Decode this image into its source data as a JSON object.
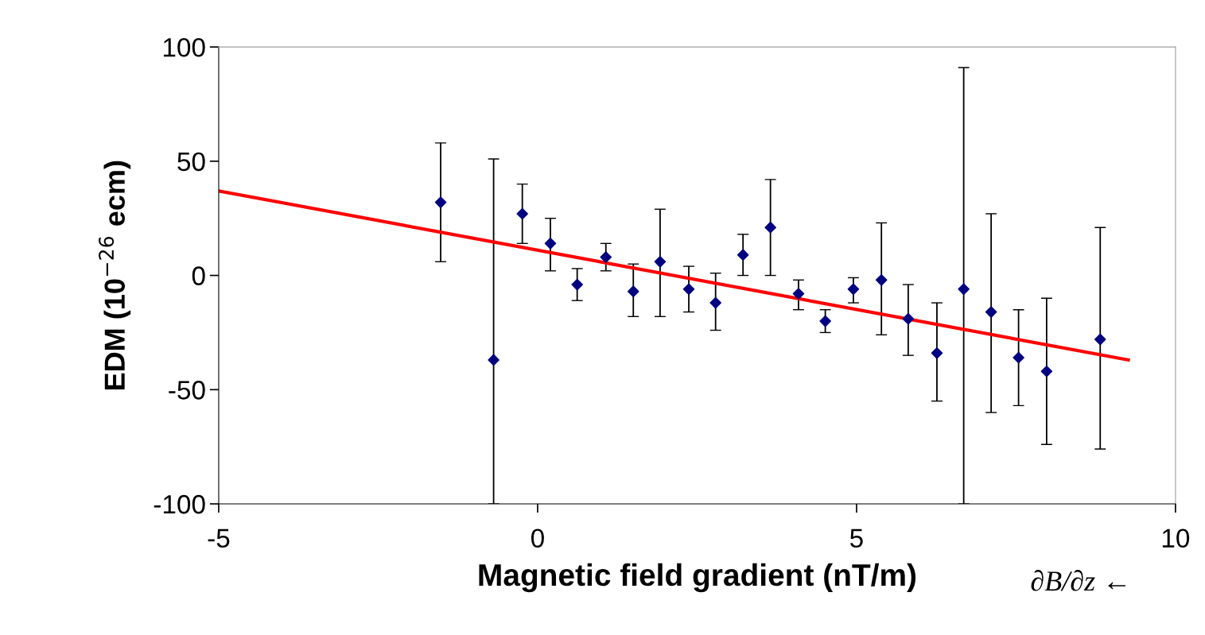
{
  "chart_data": {
    "type": "scatter",
    "xlabel": "Magnetic field gradient (nT/m)",
    "ylabel": "EDM (10$^{−26}$ ecm)",
    "annotations": [
      "∂B/∂z ←"
    ],
    "series": [
      {
        "color": "#000080",
        "marker": "diamond",
        "x": [
          -1.52,
          -0.69,
          -0.24,
          0.2,
          0.62,
          1.07,
          1.5,
          1.92,
          2.37,
          2.79,
          3.22,
          3.65,
          4.09,
          4.51,
          4.95,
          5.39,
          5.81,
          6.26,
          6.68,
          7.11,
          7.54,
          7.98,
          8.82
        ],
        "values": [
          32,
          -37,
          27,
          14,
          -4,
          8,
          -7,
          6,
          -6,
          -12,
          9,
          21,
          -8,
          -20,
          -6,
          -2,
          -19,
          -34,
          -6,
          -16,
          -36,
          -42,
          -28
        ],
        "errors": [
          [
            6,
            58
          ],
          [
            -100,
            51
          ],
          [
            14,
            40
          ],
          [
            2,
            25
          ],
          [
            -11,
            3
          ],
          [
            2,
            14
          ],
          [
            -18,
            5
          ],
          [
            -18,
            29
          ],
          [
            -16,
            4
          ],
          [
            -24,
            1
          ],
          [
            0,
            18
          ],
          [
            0,
            42
          ],
          [
            -15,
            -2
          ],
          [
            -25,
            -15
          ],
          [
            -12,
            -1
          ],
          [
            -26,
            23
          ],
          [
            -35,
            -4
          ],
          [
            -55,
            -12
          ],
          [
            -100,
            91
          ],
          [
            -60,
            27
          ],
          [
            -57,
            -15
          ],
          [
            -74,
            -10
          ],
          [
            -76,
            21
          ]
        ]
      },
      {
        "type": "line",
        "color": "#ff0000",
        "marker": "none",
        "x": [
          -5,
          9.26
        ],
        "values": [
          37,
          -37
        ]
      }
    ],
    "xlim": [
      -5,
      10
    ],
    "xticks": [
      -5,
      0,
      5,
      10
    ],
    "ylim": [
      -100,
      100
    ],
    "yticks": [
      -100,
      -50,
      0,
      50,
      100
    ],
    "grid": false,
    "legend": false
  }
}
